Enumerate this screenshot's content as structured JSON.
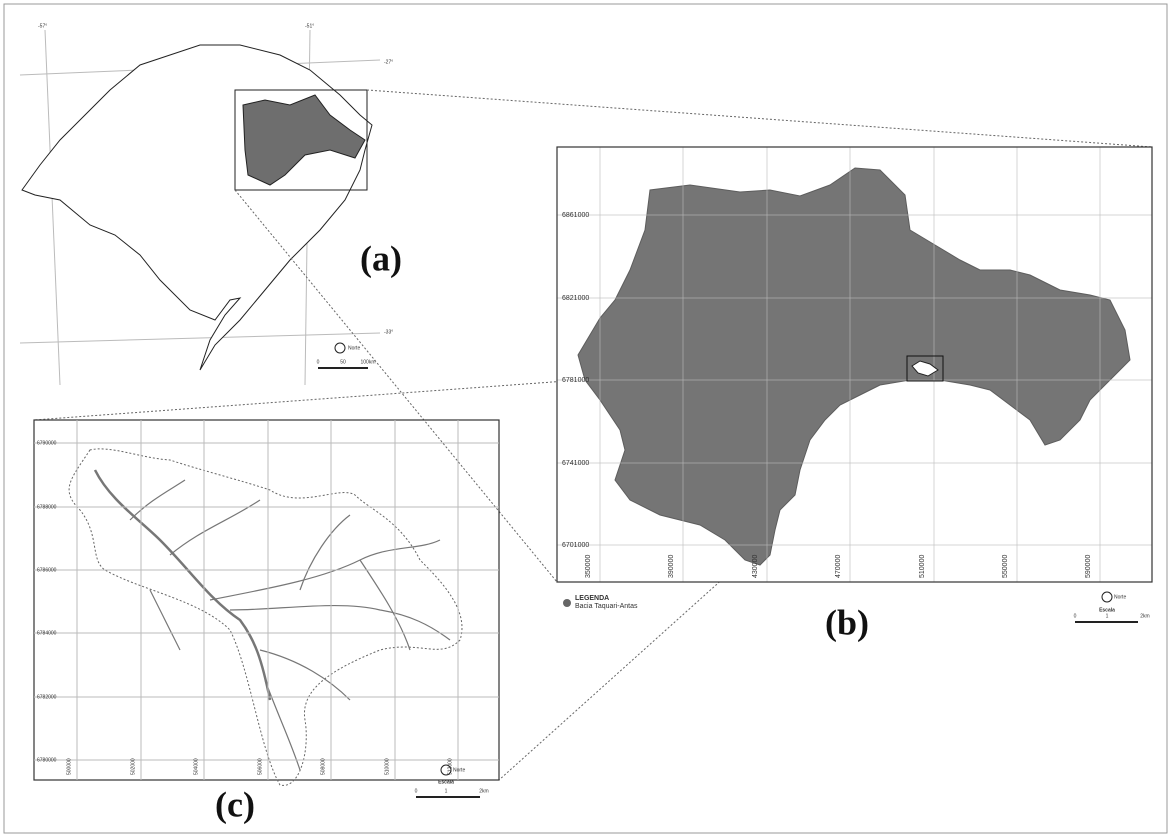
{
  "panel_a": {
    "label": "(a)",
    "graticule": [
      "-57°",
      "-51°",
      "-27°",
      "-33°"
    ],
    "north": "Norte",
    "scale": [
      "0",
      "50",
      "100km"
    ]
  },
  "panel_b": {
    "label": "(b)",
    "y_labels": [
      "6861000",
      "6821000",
      "6781000",
      "6741000",
      "6701000"
    ],
    "x_labels": [
      "350000",
      "390000",
      "430000",
      "470000",
      "510000",
      "550000",
      "590000"
    ],
    "legend_title": "LEGENDA",
    "legend_item": "Bacia Taquari-Antas",
    "north": "Norte",
    "scale_title": "Escala",
    "scale": [
      "0",
      "1",
      "2km"
    ]
  },
  "panel_c": {
    "label": "(c)",
    "y_labels": [
      "6790000",
      "6788000",
      "6786000",
      "6784000",
      "6782000",
      "6780000"
    ],
    "x_labels": [
      "500000",
      "502000",
      "504000",
      "506000",
      "508000",
      "510000",
      "512000"
    ],
    "north": "Norte",
    "scale_title": "Escala",
    "scale": [
      "0",
      "1",
      "2km"
    ]
  }
}
